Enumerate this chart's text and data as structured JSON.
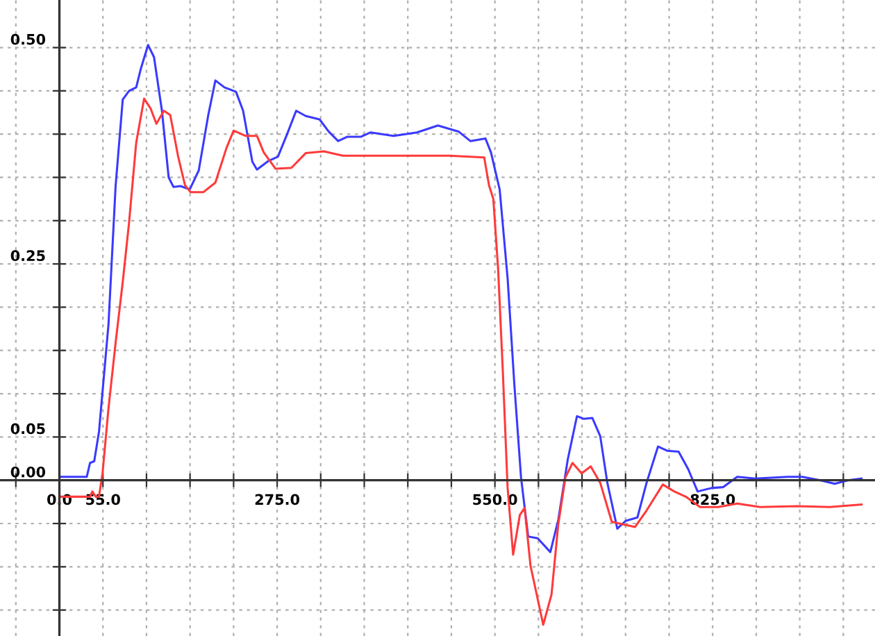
{
  "chart_data": {
    "type": "line",
    "xlim": [
      -75,
      1030
    ],
    "ylim": [
      -0.18,
      0.555
    ],
    "xticks": [
      {
        "value": -55,
        "label": null
      },
      {
        "value": 0,
        "label": "0.0"
      },
      {
        "value": 55,
        "label": "55.0"
      },
      {
        "value": 110,
        "label": null
      },
      {
        "value": 165,
        "label": null
      },
      {
        "value": 220,
        "label": null
      },
      {
        "value": 275,
        "label": "275.0"
      },
      {
        "value": 330,
        "label": null
      },
      {
        "value": 385,
        "label": null
      },
      {
        "value": 440,
        "label": null
      },
      {
        "value": 495,
        "label": null
      },
      {
        "value": 550,
        "label": "550.0"
      },
      {
        "value": 605,
        "label": null
      },
      {
        "value": 660,
        "label": null
      },
      {
        "value": 715,
        "label": null
      },
      {
        "value": 770,
        "label": null
      },
      {
        "value": 825,
        "label": "825.0"
      },
      {
        "value": 880,
        "label": null
      },
      {
        "value": 935,
        "label": null
      },
      {
        "value": 990,
        "label": null
      }
    ],
    "yticks": [
      {
        "value": -0.15,
        "label": null
      },
      {
        "value": -0.1,
        "label": null
      },
      {
        "value": -0.05,
        "label": null
      },
      {
        "value": 0,
        "label": "0.00"
      },
      {
        "value": 0.05,
        "label": "0.05"
      },
      {
        "value": 0.1,
        "label": null
      },
      {
        "value": 0.15,
        "label": null
      },
      {
        "value": 0.2,
        "label": null
      },
      {
        "value": 0.25,
        "label": "0.25"
      },
      {
        "value": 0.3,
        "label": null
      },
      {
        "value": 0.35,
        "label": null
      },
      {
        "value": 0.4,
        "label": null
      },
      {
        "value": 0.45,
        "label": null
      },
      {
        "value": 0.5,
        "label": "0.50"
      }
    ],
    "grid": true,
    "marker": "none",
    "line_style": "solid",
    "series": [
      {
        "color": "#3a3aff",
        "x": [
          0,
          34.6,
          38.7,
          44,
          50,
          62,
          71,
          80,
          88,
          97,
          103,
          112,
          119.5,
          129.5,
          138,
          144,
          153,
          164.6,
          176,
          188,
          197,
          208.5,
          223,
          232,
          243.7,
          249.5,
          264,
          276,
          287.6,
          299,
          311,
          328.6,
          340,
          352,
          363.7,
          381,
          393,
          422,
          451.6,
          478,
          504,
          519,
          538,
          545,
          556,
          566,
          574.6,
          583,
          592,
          604,
          620,
          630,
          642,
          653.6,
          662,
          673,
          683,
          692,
          704.6,
          715,
          730,
          741.5,
          756,
          768,
          782,
          794,
          806,
          823.6,
          838,
          856,
          879,
          920,
          938,
          961,
          979,
          996,
          1013
        ],
        "values": [
          0.004,
          0.004,
          0.02,
          0.022,
          0.056,
          0.18,
          0.34,
          0.44,
          0.45,
          0.454,
          0.476,
          0.503,
          0.489,
          0.427,
          0.35,
          0.339,
          0.34,
          0.336,
          0.358,
          0.422,
          0.462,
          0.454,
          0.449,
          0.427,
          0.368,
          0.359,
          0.369,
          0.374,
          0.4,
          0.427,
          0.421,
          0.417,
          0.403,
          0.392,
          0.397,
          0.397,
          0.402,
          0.398,
          0.402,
          0.41,
          0.403,
          0.392,
          0.395,
          0.379,
          0.336,
          0.234,
          0.11,
          0.003,
          -0.065,
          -0.067,
          -0.083,
          -0.046,
          0.024,
          0.074,
          0.071,
          0.072,
          0.051,
          -0.003,
          -0.056,
          -0.047,
          -0.043,
          -0.003,
          0.039,
          0.034,
          0.033,
          0.013,
          -0.013,
          -0.009,
          -0.008,
          0.004,
          0.002,
          0.004,
          0.004,
          0,
          -0.004,
          0,
          0.002
        ]
      },
      {
        "color": "#ff3a3a",
        "x": [
          0,
          38.7,
          41.6,
          46,
          50,
          54.5,
          62,
          71,
          80,
          88,
          97,
          107,
          115,
          122.5,
          132,
          140,
          150,
          158.6,
          165.7,
          182,
          197,
          211,
          220,
          235,
          249.5,
          258,
          273,
          293,
          311,
          334,
          358,
          393,
          451.6,
          480,
          492.6,
          536.5,
          542.5,
          548,
          554,
          560,
          566,
          573,
          581.5,
          587.5,
          595,
          611,
          621.5,
          630,
          639,
          648,
          659.5,
          671,
          683,
          697.6,
          712,
          727,
          741.5,
          762,
          776.6,
          791,
          809,
          832,
          856,
          885,
          932,
          973,
          1013
        ],
        "values": [
          -0.019,
          -0.019,
          -0.013,
          -0.019,
          -0.019,
          0.008,
          0.083,
          0.159,
          0.229,
          0.298,
          0.39,
          0.441,
          0.43,
          0.412,
          0.427,
          0.422,
          0.374,
          0.341,
          0.333,
          0.333,
          0.344,
          0.384,
          0.404,
          0.398,
          0.398,
          0.379,
          0.36,
          0.361,
          0.378,
          0.38,
          0.375,
          0.375,
          0.375,
          0.375,
          0.375,
          0.373,
          0.341,
          0.325,
          0.245,
          0.126,
          -0.008,
          -0.086,
          -0.04,
          -0.032,
          -0.099,
          -0.167,
          -0.132,
          -0.051,
          0.003,
          0.02,
          0.008,
          0.016,
          -0.003,
          -0.048,
          -0.051,
          -0.054,
          -0.035,
          -0.005,
          -0.013,
          -0.019,
          -0.031,
          -0.031,
          -0.027,
          -0.031,
          -0.03,
          -0.031,
          -0.028
        ]
      }
    ]
  }
}
